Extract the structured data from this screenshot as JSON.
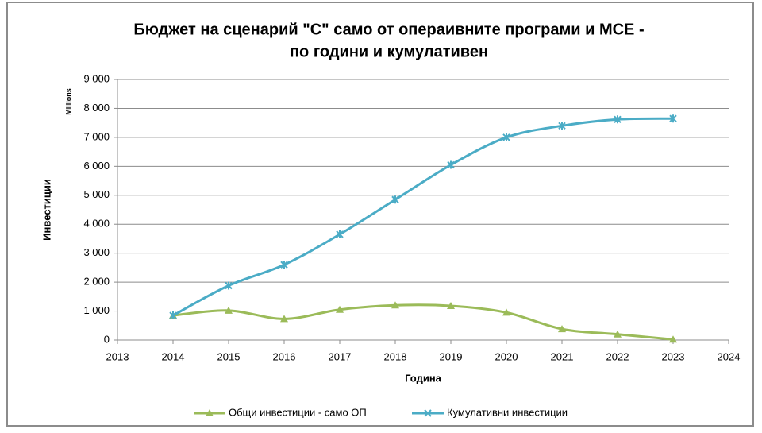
{
  "chart_data": {
    "type": "line",
    "title": "Бюджет на сценарий \"С\" само от операивните програми и МСЕ -",
    "subtitle": "по години и кумулативен",
    "y_unit": "Millions",
    "y_label": "Инвестиции",
    "x_label": "Година",
    "x": [
      2014,
      2015,
      2016,
      2017,
      2018,
      2019,
      2020,
      2021,
      2022,
      2023
    ],
    "series": [
      {
        "name": "Общи инвестиции - само ОП",
        "color": "#9bbb59",
        "marker": "triangle",
        "values": [
          850,
          1020,
          730,
          1050,
          1200,
          1180,
          950,
          380,
          200,
          20
        ]
      },
      {
        "name": "Кумулативни инвестиции",
        "color": "#4bacc6",
        "marker": "star",
        "values": [
          850,
          1880,
          2600,
          3650,
          4850,
          6050,
          7000,
          7400,
          7620,
          7650
        ]
      }
    ],
    "xlim": [
      2013,
      2024
    ],
    "xticks": [
      2013,
      2014,
      2015,
      2016,
      2017,
      2018,
      2019,
      2020,
      2021,
      2022,
      2023,
      2024
    ],
    "ylim": [
      0,
      9000
    ],
    "yticks": [
      0,
      {
        "value": 1000,
        "label": "1 000"
      },
      {
        "value": 2000,
        "label": "2 000"
      },
      {
        "value": 3000,
        "label": "3 000"
      },
      {
        "value": 4000,
        "label": "4 000"
      },
      {
        "value": 5000,
        "label": "5 000"
      },
      {
        "value": 6000,
        "label": "6 000"
      },
      {
        "value": 7000,
        "label": "7 000"
      },
      {
        "value": 8000,
        "label": "8 000"
      },
      {
        "value": 9000,
        "label": "9 000"
      }
    ],
    "grid": true,
    "legend": "bottom",
    "smooth": true
  }
}
